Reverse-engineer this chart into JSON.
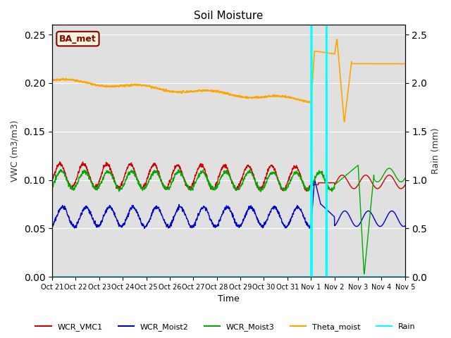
{
  "title": "Soil Moisture",
  "ylabel_left": "VWC (m3/m3)",
  "ylabel_right": "Rain (mm)",
  "xlabel": "Time",
  "ylim_left": [
    0.0,
    0.26
  ],
  "ylim_right": [
    0.0,
    2.6
  ],
  "plot_bg_color": "#e0e0e0",
  "annotation_text": "BA_met",
  "annotation_color": "#8b0000",
  "annotation_bg": "#f5f5dc",
  "x_tick_labels": [
    "Oct 21",
    "Oct 22",
    "Oct 23",
    "Oct 24",
    "Oct 25",
    "Oct 26",
    "Oct 27",
    "Oct 28",
    "Oct 29",
    "Oct 30",
    "Oct 31",
    "Nov 1",
    "Nov 2",
    "Nov 3",
    "Nov 4",
    "Nov 5"
  ],
  "colors": {
    "WCR_VMC1": "#cc0000",
    "WCR_Moist2": "#0000cc",
    "WCR_Moist3": "#00aa00",
    "Theta_moist": "#ffa500",
    "Rain": "#00ffff"
  },
  "line_widths": {
    "WCR_VMC1": 1.0,
    "WCR_Moist2": 1.0,
    "WCR_Moist3": 1.0,
    "Theta_moist": 1.2,
    "Rain": 1.5
  }
}
